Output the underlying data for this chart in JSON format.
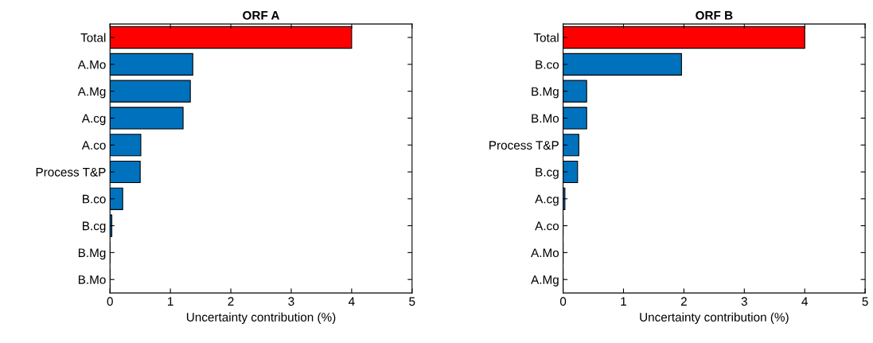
{
  "chart_data": [
    {
      "type": "bar",
      "orientation": "horizontal",
      "title": "ORF A",
      "xlabel": "Uncertainty contribution (%)",
      "categories": [
        "Total",
        "A.Mo",
        "A.Mg",
        "A.cg",
        "A.co",
        "Process T&P",
        "B.co",
        "B.cg",
        "B.Mg",
        "B.Mo"
      ],
      "values": [
        4.0,
        1.37,
        1.33,
        1.21,
        0.51,
        0.5,
        0.21,
        0.03,
        0,
        0
      ],
      "colors": [
        "#ff0000",
        "#0072bd",
        "#0072bd",
        "#0072bd",
        "#0072bd",
        "#0072bd",
        "#0072bd",
        "#0072bd",
        "#0072bd",
        "#0072bd"
      ],
      "xlim": [
        0,
        5
      ],
      "xticks": [
        0,
        1,
        2,
        3,
        4,
        5
      ],
      "grid": false,
      "legend": false
    },
    {
      "type": "bar",
      "orientation": "horizontal",
      "title": "ORF B",
      "xlabel": "Uncertainty contribution (%)",
      "categories": [
        "Total",
        "B.co",
        "B.Mg",
        "B.Mo",
        "Process T&P",
        "B.cg",
        "A.cg",
        "A.co",
        "A.Mo",
        "A.Mg"
      ],
      "values": [
        4.0,
        1.96,
        0.39,
        0.39,
        0.26,
        0.24,
        0.03,
        0,
        0,
        0
      ],
      "colors": [
        "#ff0000",
        "#0072bd",
        "#0072bd",
        "#0072bd",
        "#0072bd",
        "#0072bd",
        "#0072bd",
        "#0072bd",
        "#0072bd",
        "#0072bd"
      ],
      "xlim": [
        0,
        5
      ],
      "xticks": [
        0,
        1,
        2,
        3,
        4,
        5
      ],
      "grid": false,
      "legend": false
    }
  ]
}
